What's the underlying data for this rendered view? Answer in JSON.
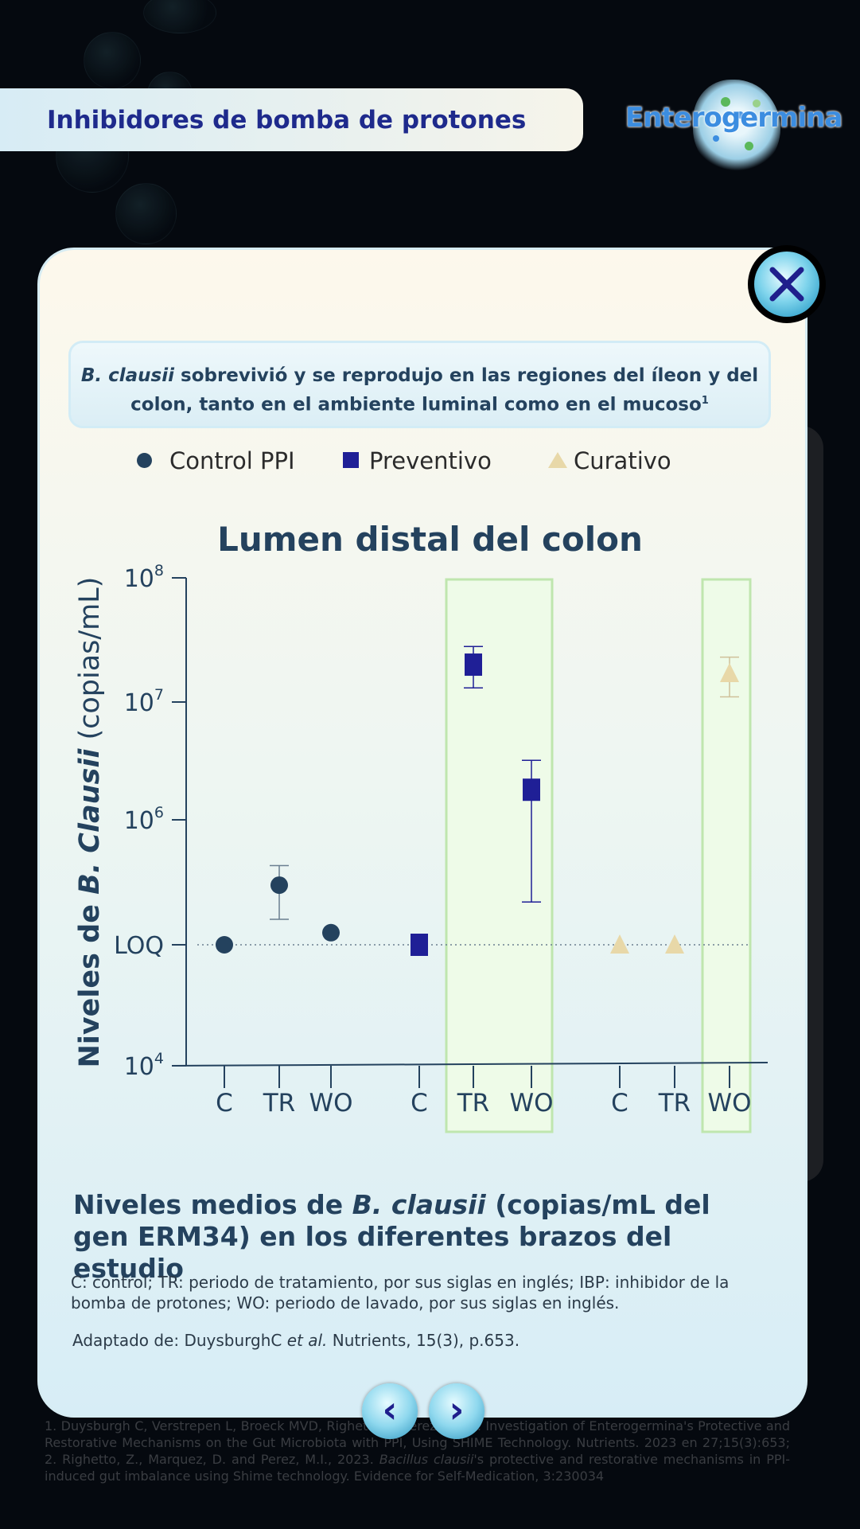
{
  "header": {
    "title": "Inhibidores de bomba de protones"
  },
  "logo": {
    "text": "Enterogermina"
  },
  "intro": {
    "species": "B. clausii",
    "text": " sobrevivió y se reprodujo en las regiones del íleon y del colon, tanto en el ambiente luminal como en el mucoso",
    "sup": "1"
  },
  "legend": [
    {
      "label": "Control PPI",
      "color": "#24425e",
      "icon": "circle-icon"
    },
    {
      "label": "Preventivo",
      "color": "#1f1f96",
      "icon": "square-icon"
    },
    {
      "label": "Curativo",
      "color": "#e8d8a8",
      "icon": "triangle-icon"
    }
  ],
  "chart_data": {
    "type": "scatter",
    "title": "Lumen distal del colon",
    "ylabel_prefix": "Niveles de ",
    "ylabel_species": "B. Clausii",
    "ylabel_suffix": " (copias/mL)",
    "yscale": "log",
    "yticks": [
      {
        "label": "10",
        "exp": "4",
        "value": 10000
      },
      {
        "label": "LOQ",
        "exp": "",
        "value": 100000
      },
      {
        "label": "10",
        "exp": "6",
        "value": 1000000
      },
      {
        "label": "10",
        "exp": "7",
        "value": 10000000
      },
      {
        "label": "10",
        "exp": "8",
        "value": 100000000
      }
    ],
    "categories": [
      "C",
      "TR",
      "WO",
      "C",
      "TR",
      "WO",
      "C",
      "TR",
      "WO"
    ],
    "highlighted_groups": [
      [
        4,
        5
      ],
      [
        8
      ]
    ],
    "loq_line": 100000,
    "series": [
      {
        "name": "Control PPI",
        "marker": "circle",
        "color": "#24425e",
        "points": [
          {
            "x": 0,
            "y": 100000
          },
          {
            "x": 1,
            "y": 300000,
            "err_low": 160000,
            "err_high": 430000
          },
          {
            "x": 2,
            "y": 125000
          }
        ]
      },
      {
        "name": "Preventivo",
        "marker": "square",
        "color": "#1f1f96",
        "points": [
          {
            "x": 3,
            "y": 100000
          },
          {
            "x": 4,
            "y": 20000000,
            "err_low": 13000000,
            "err_high": 28000000
          },
          {
            "x": 5,
            "y": 1800000,
            "err_low": 220000,
            "err_high": 3200000
          }
        ]
      },
      {
        "name": "Curativo",
        "marker": "triangle",
        "color": "#e8d8a8",
        "points": [
          {
            "x": 6,
            "y": 100000
          },
          {
            "x": 7,
            "y": 100000
          },
          {
            "x": 8,
            "y": 17000000,
            "err_low": 11000000,
            "err_high": 23000000
          }
        ]
      }
    ]
  },
  "caption": {
    "title_pre": "Niveles medios de ",
    "title_species": "B. clausii",
    "title_post": " (copias/mL del gen ERM34) en los diferentes brazos del estudio",
    "desc": "C: control; TR: periodo de tratamiento, por sus siglas en inglés; IBP: inhibidor de la bomba de protones; WO: periodo de lavado, por sus siglas en inglés.",
    "source_pre": "Adaptado de: DuysburghC ",
    "source_etal": "et al.",
    "source_post": " Nutrients, 15(3), p.653."
  },
  "nav": {
    "prev": "‹",
    "next": "›"
  },
  "references": {
    "part1": "1. Duysburgh C, Verstrepen L, Broeck MVD, Righetto Z, Perez M 3rd. Investigation of Enterogermina's Protective and Restorative Mechanisms on the Gut Microbiota with PPI, Using SHIME Technology. Nutrients. 2023 en 27;15(3):653; 2. Righetto, Z., Marquez, D. and Perez, M.I., 2023. ",
    "species": "Bacillus clausii",
    "part2": "'s protective and restorative mechanisms in PPI-induced gut imbalance using Shime technology. Evidence for Self-Medication, 3:230034"
  }
}
